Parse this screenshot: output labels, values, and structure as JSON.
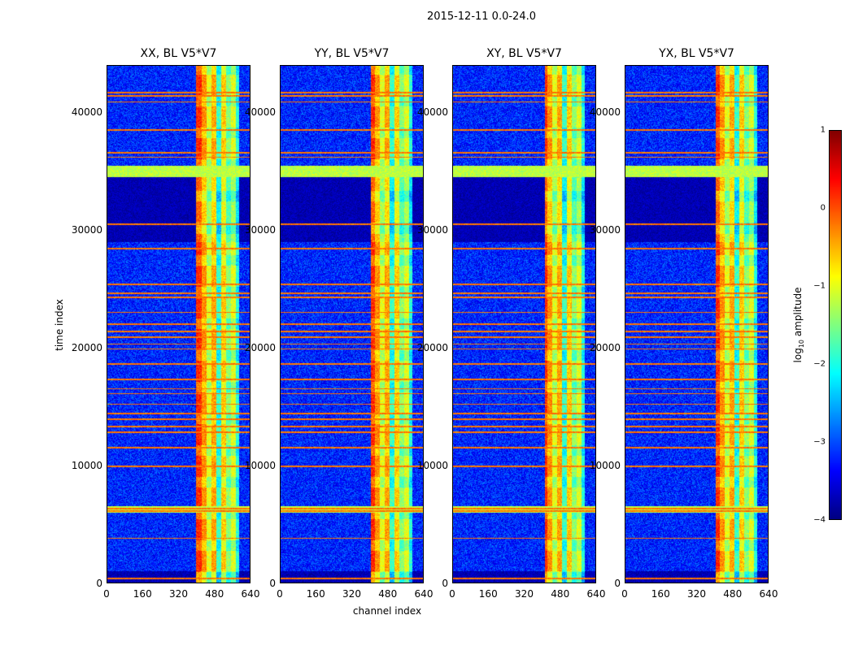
{
  "chart_data": {
    "type": "heatmap",
    "suptitle": "2015-12-11 0.0-24.0",
    "xlabel": "channel index",
    "ylabel": "time index",
    "xlim": [
      0,
      640
    ],
    "ylim": [
      0,
      44000
    ],
    "xticks": [
      "0",
      "160",
      "320",
      "480",
      "640"
    ],
    "yticks": [
      "0",
      "10000",
      "20000",
      "30000",
      "40000"
    ],
    "panels": [
      {
        "title": "XX, BL V5*V7"
      },
      {
        "title": "YY, BL V5*V7"
      },
      {
        "title": "XY, BL V5*V7"
      },
      {
        "title": "YX, BL V5*V7"
      }
    ],
    "colorbar": {
      "label": "log10 amplitude",
      "label_base": "log",
      "label_sub": "10",
      "label_rest": " amplitude",
      "range": [
        -4,
        1
      ],
      "ticks": [
        "1",
        "0",
        "−1",
        "−2",
        "−3",
        "−4"
      ],
      "colormap": "jet"
    },
    "features": {
      "active_channel_band": [
        400,
        590
      ],
      "quiet_background_log": -3.2,
      "dark_blocks_time": [
        [
          29000,
          34500
        ],
        [
          0,
          1000
        ]
      ],
      "green_bands_time": [
        [
          34500,
          35500
        ],
        [
          6000,
          6500
        ]
      ],
      "rfi_lines_time": [
        400,
        3800,
        6100,
        6300,
        9900,
        11500,
        12800,
        13300,
        13900,
        14400,
        15200,
        16100,
        16500,
        17300,
        18600,
        19900,
        20300,
        20900,
        21400,
        22000,
        23000,
        24300,
        24600,
        25400,
        28400,
        30500,
        36200,
        36600,
        38500,
        40900,
        41400,
        41700
      ]
    }
  }
}
